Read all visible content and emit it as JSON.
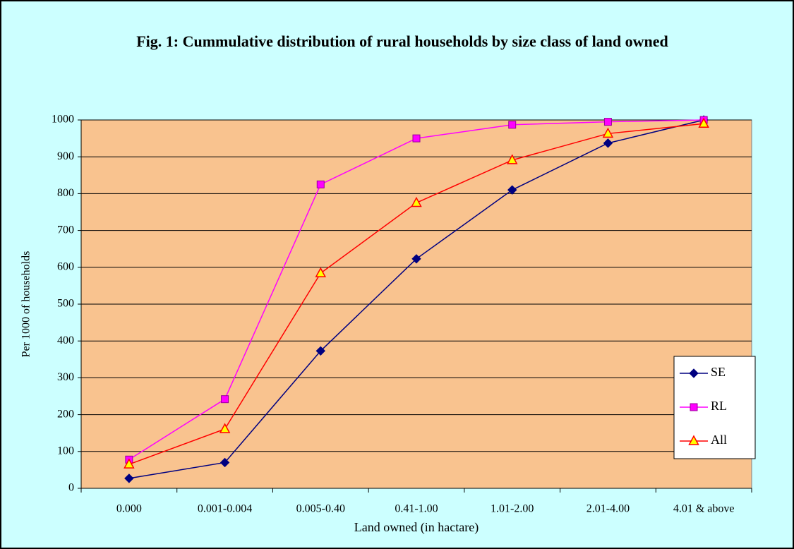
{
  "chart_data": {
    "type": "line",
    "title": "Fig. 1: Cummulative distribution of rural households by size class of land owned",
    "x_label": "Land owned (in hactare)",
    "y_label": "Per 1000 of households",
    "categories": [
      "0.000",
      "0.001-0.004",
      "0.005-0.40",
      "0.41-1.00",
      "1.01-2.00",
      "2.01-4.00",
      "4.01 & above"
    ],
    "series": [
      {
        "name": "SE",
        "color": "#000080",
        "marker": "diamond",
        "values": [
          27,
          70,
          373,
          623,
          810,
          937,
          1000
        ]
      },
      {
        "name": "RL",
        "color": "#ff00ff",
        "marker": "square",
        "values": [
          78,
          242,
          825,
          950,
          987,
          995,
          1000
        ]
      },
      {
        "name": "All",
        "color": "#ff0000",
        "marker": "triangle",
        "values": [
          65,
          161,
          584,
          775,
          891,
          963,
          990
        ]
      }
    ],
    "ylim": [
      0,
      1000
    ],
    "yticks": [
      0,
      100,
      200,
      300,
      400,
      500,
      600,
      700,
      800,
      900,
      1000
    ],
    "grid": true,
    "legend": "right"
  }
}
